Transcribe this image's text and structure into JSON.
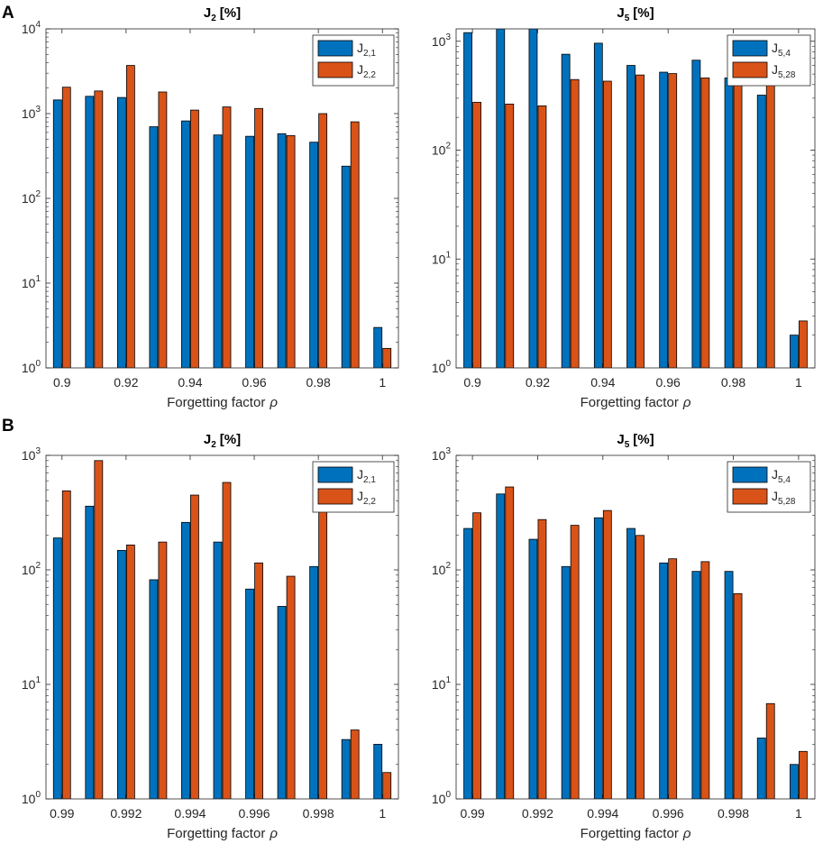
{
  "figure": {
    "xlabel_text": "Forgetting factor",
    "xlabel_symbol": "ρ"
  },
  "colors": {
    "blue": "#0072BD",
    "orange": "#D95319",
    "axis": "#262626",
    "grid": "#e6e6e6"
  },
  "chart_data": [
    {
      "type": "bar",
      "panel_label": "A",
      "title_main": "J",
      "title_sub": "2",
      "title_suffix": "[%]",
      "scale": "log",
      "ylim": [
        1,
        10000
      ],
      "xlim": [
        0.895,
        1.005
      ],
      "yticks": [
        {
          "base": "10",
          "exp": "0"
        },
        {
          "base": "10",
          "exp": "1"
        },
        {
          "base": "10",
          "exp": "2"
        },
        {
          "base": "10",
          "exp": "3"
        },
        {
          "base": "10",
          "exp": "4"
        }
      ],
      "xticks": [
        "0.9",
        "0.92",
        "0.94",
        "0.96",
        "0.98",
        "1"
      ],
      "x": [
        0.9,
        0.91,
        0.92,
        0.93,
        0.94,
        0.95,
        0.96,
        0.97,
        0.98,
        0.99,
        1.0
      ],
      "series": [
        {
          "name": "J2,1",
          "label_main": "J",
          "label_sub": "2,1",
          "color": "#0072BD",
          "values": [
            1450,
            1600,
            1550,
            700,
            820,
            560,
            540,
            580,
            460,
            240,
            3.0
          ]
        },
        {
          "name": "J2,2",
          "label_main": "J",
          "label_sub": "2,2",
          "color": "#D95319",
          "values": [
            2050,
            1850,
            3700,
            1800,
            1100,
            1200,
            1150,
            550,
            1000,
            800,
            1.7
          ]
        }
      ],
      "legend_position": "top-right"
    },
    {
      "type": "bar",
      "panel_label": "",
      "title_main": "J",
      "title_sub": "5",
      "title_suffix": "[%]",
      "scale": "log",
      "ylim": [
        1,
        1300
      ],
      "xlim": [
        0.895,
        1.005
      ],
      "yticks": [
        {
          "base": "10",
          "exp": "0"
        },
        {
          "base": "10",
          "exp": "1"
        },
        {
          "base": "10",
          "exp": "2"
        },
        {
          "base": "10",
          "exp": "3"
        }
      ],
      "xticks": [
        "0.9",
        "0.92",
        "0.94",
        "0.96",
        "0.98",
        "1"
      ],
      "x": [
        0.9,
        0.91,
        0.92,
        0.93,
        0.94,
        0.95,
        0.96,
        0.97,
        0.98,
        0.99,
        1.0
      ],
      "series": [
        {
          "name": "J5,4",
          "label_main": "J",
          "label_sub": "5,4",
          "color": "#0072BD",
          "values": [
            1200,
            1300,
            1300,
            760,
            960,
            600,
            520,
            670,
            460,
            320,
            2.0
          ]
        },
        {
          "name": "J5,28",
          "label_main": "J",
          "label_sub": "5,28",
          "color": "#D95319",
          "values": [
            275,
            265,
            255,
            445,
            430,
            490,
            505,
            460,
            520,
            520,
            2.7
          ]
        }
      ],
      "legend_position": "top-right"
    },
    {
      "type": "bar",
      "panel_label": "B",
      "title_main": "J",
      "title_sub": "2",
      "title_suffix": "[%]",
      "scale": "log",
      "ylim": [
        1,
        1000
      ],
      "xlim": [
        0.9895,
        1.0005
      ],
      "yticks": [
        {
          "base": "10",
          "exp": "0"
        },
        {
          "base": "10",
          "exp": "1"
        },
        {
          "base": "10",
          "exp": "2"
        },
        {
          "base": "10",
          "exp": "3"
        }
      ],
      "xticks": [
        "0.99",
        "0.992",
        "0.994",
        "0.996",
        "0.998",
        "1"
      ],
      "x": [
        0.99,
        0.991,
        0.992,
        0.993,
        0.994,
        0.995,
        0.996,
        0.997,
        0.998,
        0.999,
        1.0
      ],
      "series": [
        {
          "name": "J2,1",
          "label_main": "J",
          "label_sub": "2,1",
          "color": "#0072BD",
          "values": [
            190,
            360,
            148,
            82,
            260,
            175,
            68,
            48,
            107,
            3.3,
            3.0
          ]
        },
        {
          "name": "J2,2",
          "label_main": "J",
          "label_sub": "2,2",
          "color": "#D95319",
          "values": [
            490,
            900,
            165,
            175,
            450,
            580,
            115,
            88,
            330,
            4.0,
            1.7
          ]
        }
      ],
      "legend_position": "top-right"
    },
    {
      "type": "bar",
      "panel_label": "",
      "title_main": "J",
      "title_sub": "5",
      "title_suffix": "[%]",
      "scale": "log",
      "ylim": [
        1,
        1000
      ],
      "xlim": [
        0.9895,
        1.0005
      ],
      "yticks": [
        {
          "base": "10",
          "exp": "0"
        },
        {
          "base": "10",
          "exp": "1"
        },
        {
          "base": "10",
          "exp": "2"
        },
        {
          "base": "10",
          "exp": "3"
        }
      ],
      "xticks": [
        "0.99",
        "0.992",
        "0.994",
        "0.996",
        "0.998",
        "1"
      ],
      "x": [
        0.99,
        0.991,
        0.992,
        0.993,
        0.994,
        0.995,
        0.996,
        0.997,
        0.998,
        0.999,
        1.0
      ],
      "series": [
        {
          "name": "J5,4",
          "label_main": "J",
          "label_sub": "5,4",
          "color": "#0072BD",
          "values": [
            230,
            460,
            185,
            107,
            285,
            230,
            115,
            97,
            97,
            3.4,
            2.0
          ]
        },
        {
          "name": "J5,28",
          "label_main": "J",
          "label_sub": "5,28",
          "color": "#D95319",
          "values": [
            315,
            530,
            275,
            245,
            330,
            200,
            125,
            118,
            62,
            6.8,
            2.6
          ]
        }
      ],
      "legend_position": "top-right"
    }
  ]
}
